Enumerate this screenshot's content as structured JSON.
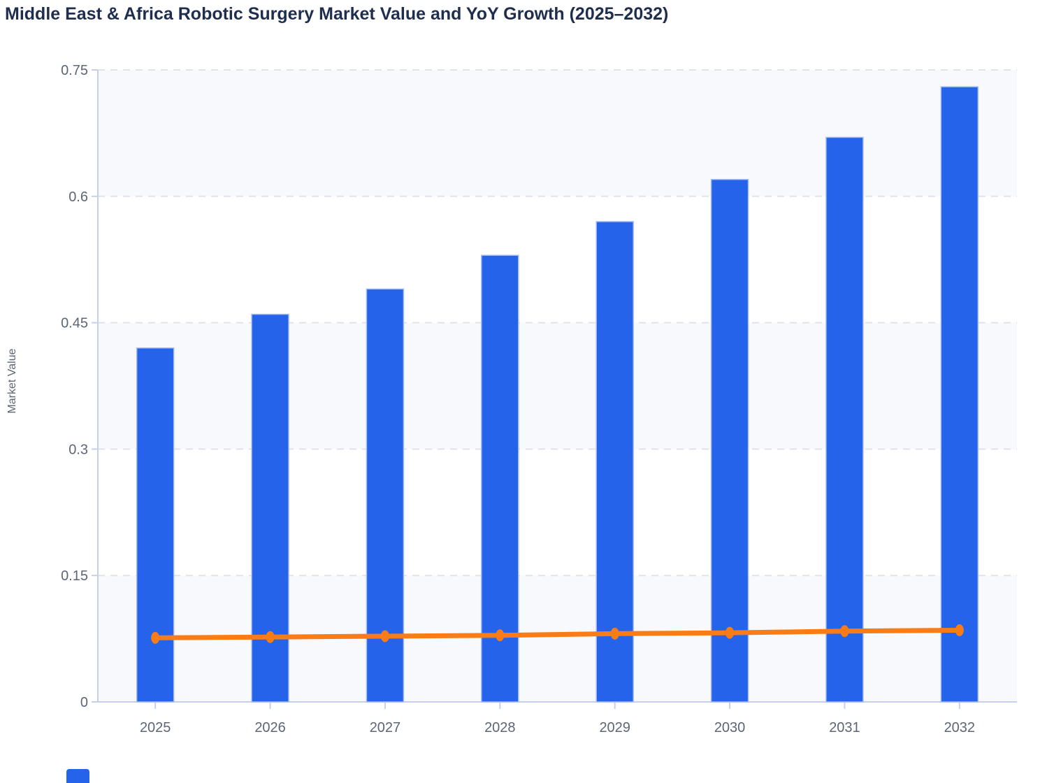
{
  "title": {
    "text": "Middle East & Africa Robotic Surgery Market Value and YoY Growth (2025–2032)",
    "color": "#1f2e4e"
  },
  "chart_data": {
    "type": "bar",
    "subtype": "combo-bar-line",
    "title": "Middle East & Africa Robotic Surgery Market Value and YoY Growth (2025–2032)",
    "categories": [
      "2025",
      "2026",
      "2027",
      "2028",
      "2029",
      "2030",
      "2031",
      "2032"
    ],
    "series": [
      {
        "name": "Market Value",
        "type": "bar",
        "color": "#2563eb",
        "border_color": "#a5bcf0",
        "values": [
          0.42,
          0.46,
          0.49,
          0.53,
          0.57,
          0.62,
          0.67,
          0.73
        ]
      },
      {
        "name": "YoY Growth",
        "type": "line",
        "color": "#f97c17",
        "values": [
          0.076,
          0.077,
          0.078,
          0.079,
          0.081,
          0.082,
          0.084,
          0.085
        ]
      }
    ],
    "xlabel": "",
    "ylabel": "Market Value",
    "ylim": [
      0,
      0.75
    ],
    "yticks": [
      0,
      0.15,
      0.3,
      0.45,
      0.6,
      0.75
    ],
    "ytick_labels": [
      "0",
      "0.15",
      "0.3",
      "0.45",
      "0.6",
      "0.75"
    ],
    "grid": "horizontal dashed",
    "split_area": "alternating bands",
    "legend_position": "bottom-left (clipped at image edge)"
  },
  "style": {
    "axis_line_color": "#c6d0ec",
    "grid_line_color": "#e0e3ea",
    "tick_label_color": "#5c6676",
    "axis_name_color": "#5c6676",
    "band_color_a": "#f8f9fc",
    "band_color_b": "#ffffff",
    "background": "#ffffff"
  },
  "legend": {
    "clipped_swatch_color": "#2563eb"
  }
}
